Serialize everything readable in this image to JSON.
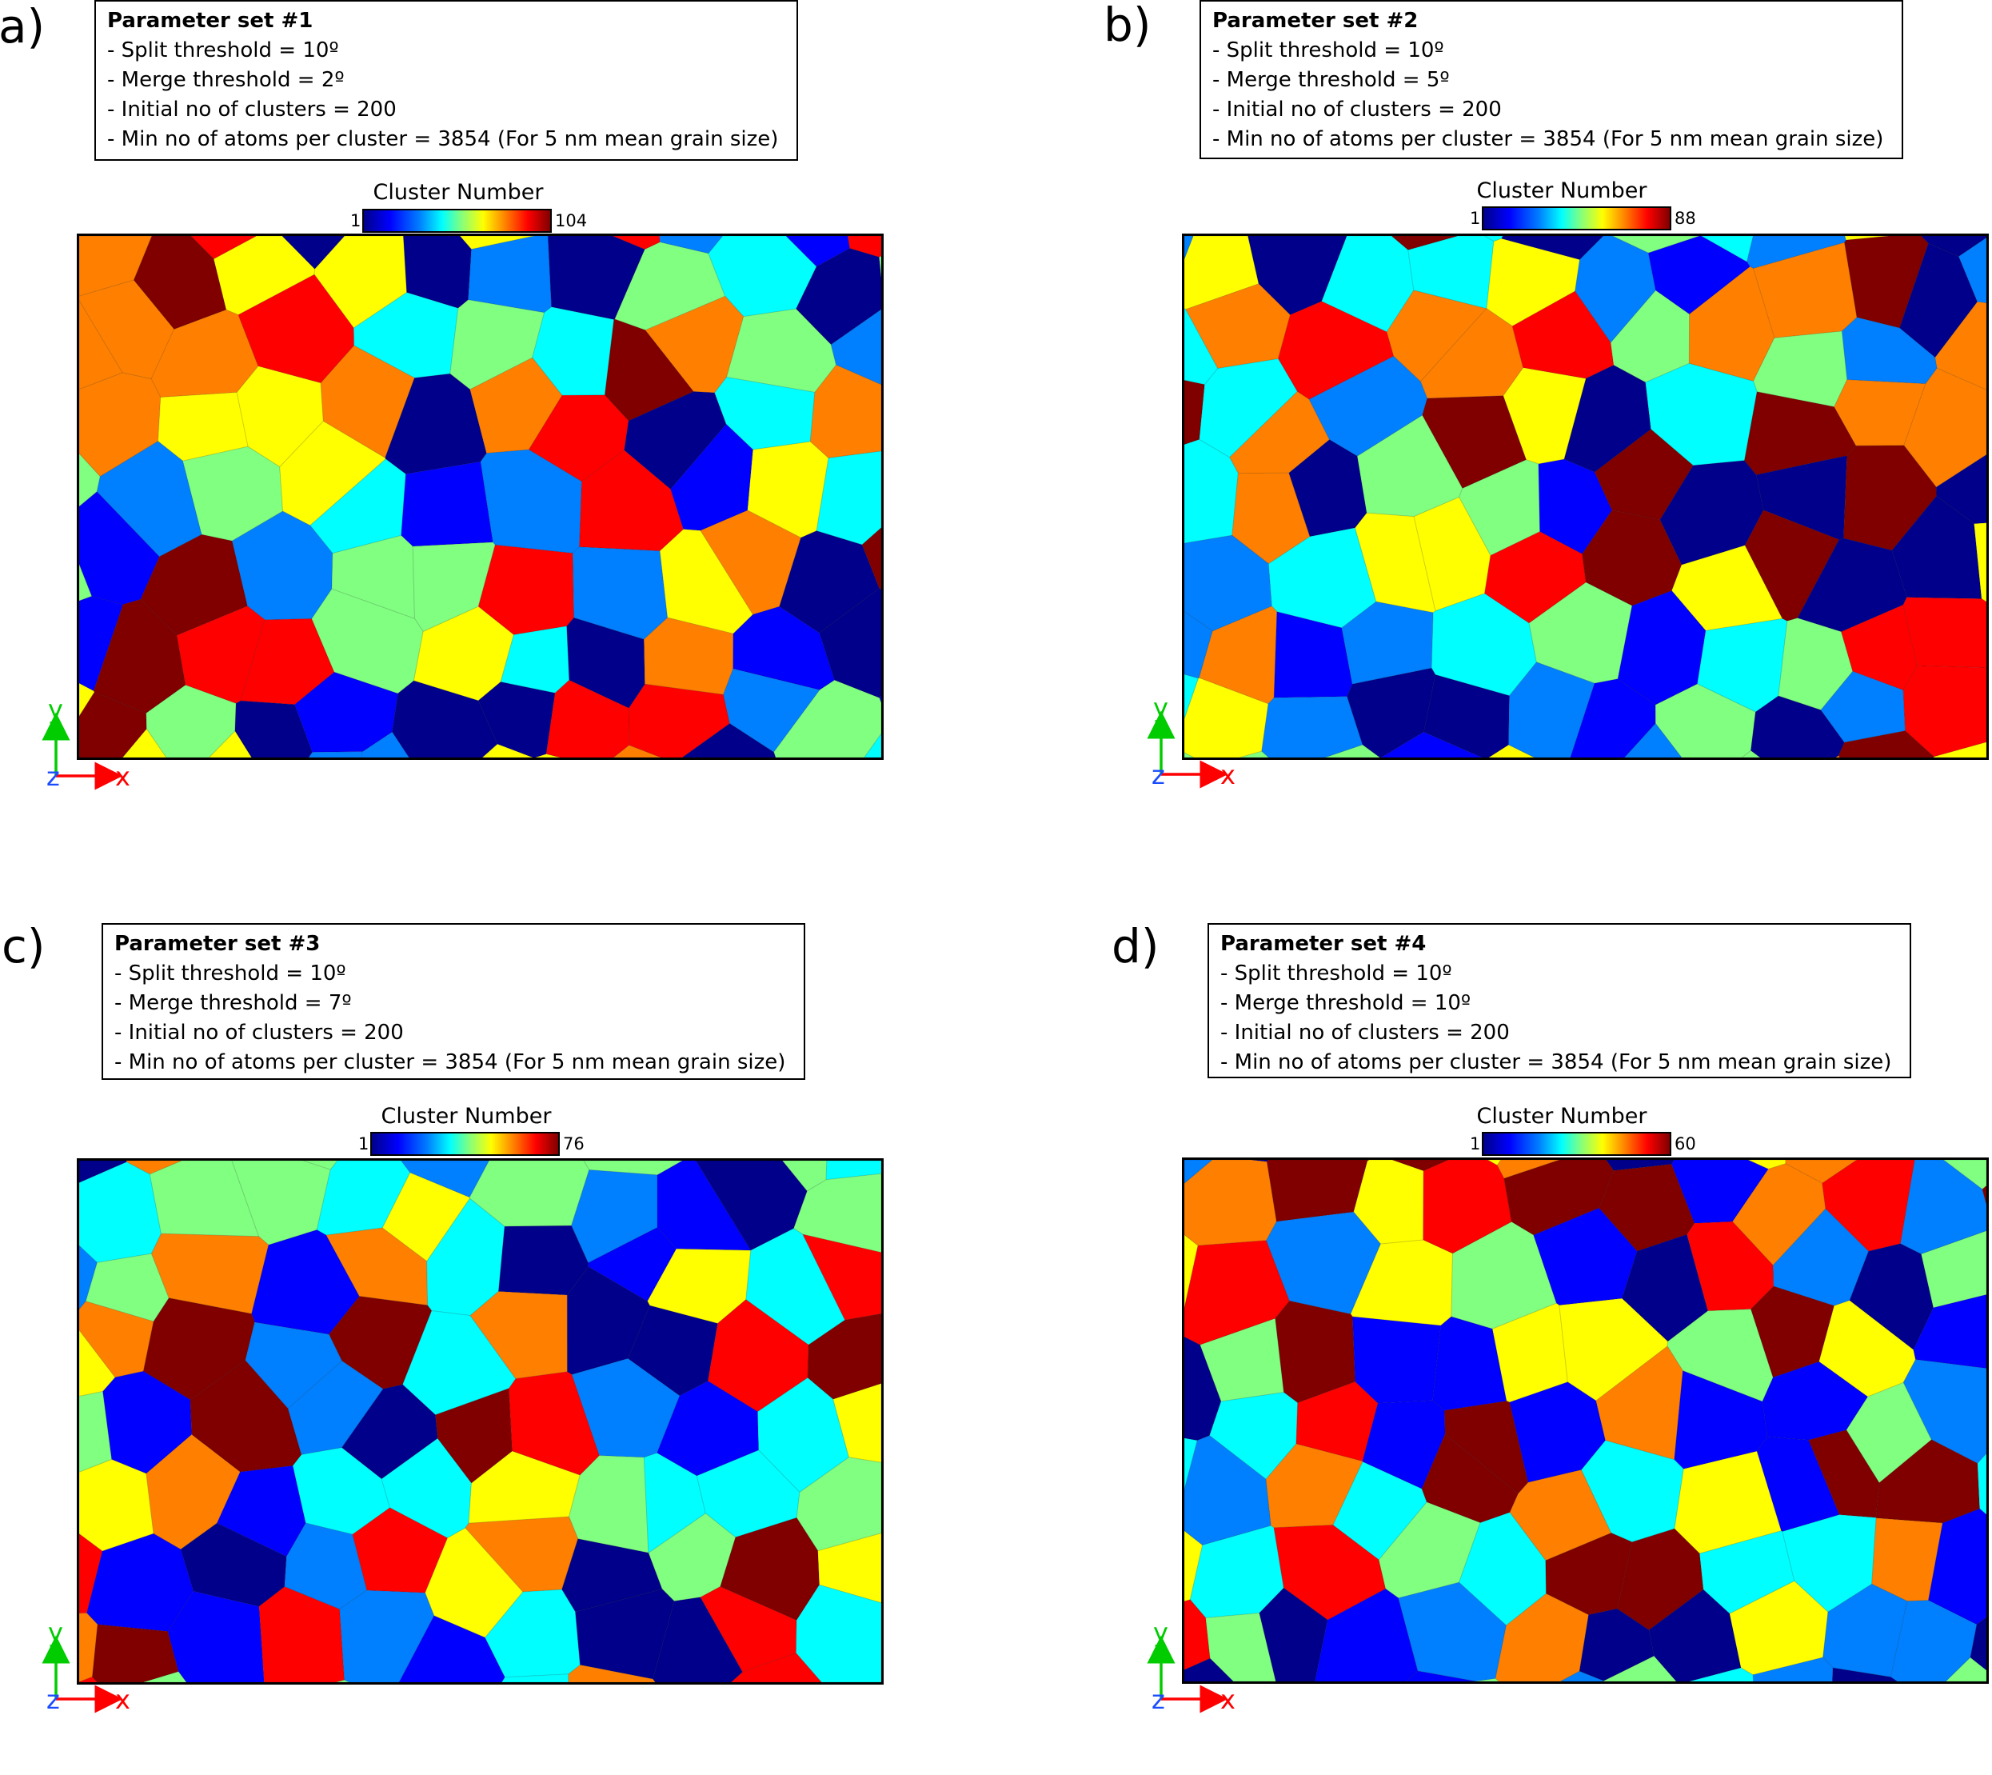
{
  "panels": [
    {
      "label": "a)",
      "params": {
        "title": "Parameter set #1",
        "lines": [
          "- Split threshold = 10º",
          "- Merge threshold = 2º",
          "- Initial no of clusters = 200",
          "- Min no of atoms per cluster = 3854 (For 5 nm mean grain size)"
        ]
      },
      "colorbar": {
        "title": "Cluster Number",
        "min": "1",
        "max": "104"
      },
      "axes": {
        "y": "y",
        "z": "z",
        "x": "x"
      }
    },
    {
      "label": "b)",
      "params": {
        "title": "Parameter set #2",
        "lines": [
          "- Split threshold = 10º",
          "- Merge threshold = 5º",
          "- Initial no of clusters = 200",
          "- Min no of atoms per cluster = 3854 (For 5 nm mean grain size)"
        ]
      },
      "colorbar": {
        "title": "Cluster Number",
        "min": "1",
        "max": "88"
      },
      "axes": {
        "y": "y",
        "z": "z",
        "x": "x"
      }
    },
    {
      "label": "c)",
      "params": {
        "title": "Parameter set #3",
        "lines": [
          "- Split threshold = 10º",
          "- Merge threshold = 7º",
          "- Initial no of clusters = 200",
          "- Min no of atoms per cluster = 3854 (For 5 nm mean grain size)"
        ]
      },
      "colorbar": {
        "title": "Cluster Number",
        "min": "1",
        "max": "76"
      },
      "axes": {
        "y": "y",
        "z": "z",
        "x": "x"
      }
    },
    {
      "label": "d)",
      "params": {
        "title": "Parameter set #4",
        "lines": [
          "- Split threshold = 10º",
          "- Merge threshold = 10º",
          "- Initial no of clusters = 200",
          "- Min no of atoms per cluster = 3854 (For 5 nm mean grain size)"
        ]
      },
      "colorbar": {
        "title": "Cluster Number",
        "min": "1",
        "max": "60"
      },
      "axes": {
        "y": "y",
        "z": "z",
        "x": "x"
      }
    }
  ],
  "colors": {
    "axis_y": "#00cc00",
    "axis_x": "#ff0000",
    "axis_z": "#1a4cff",
    "colormap": [
      "#00008b",
      "#0000ff",
      "#0080ff",
      "#00ffff",
      "#80ff80",
      "#ffff00",
      "#ff8000",
      "#ff0000",
      "#800000"
    ]
  }
}
